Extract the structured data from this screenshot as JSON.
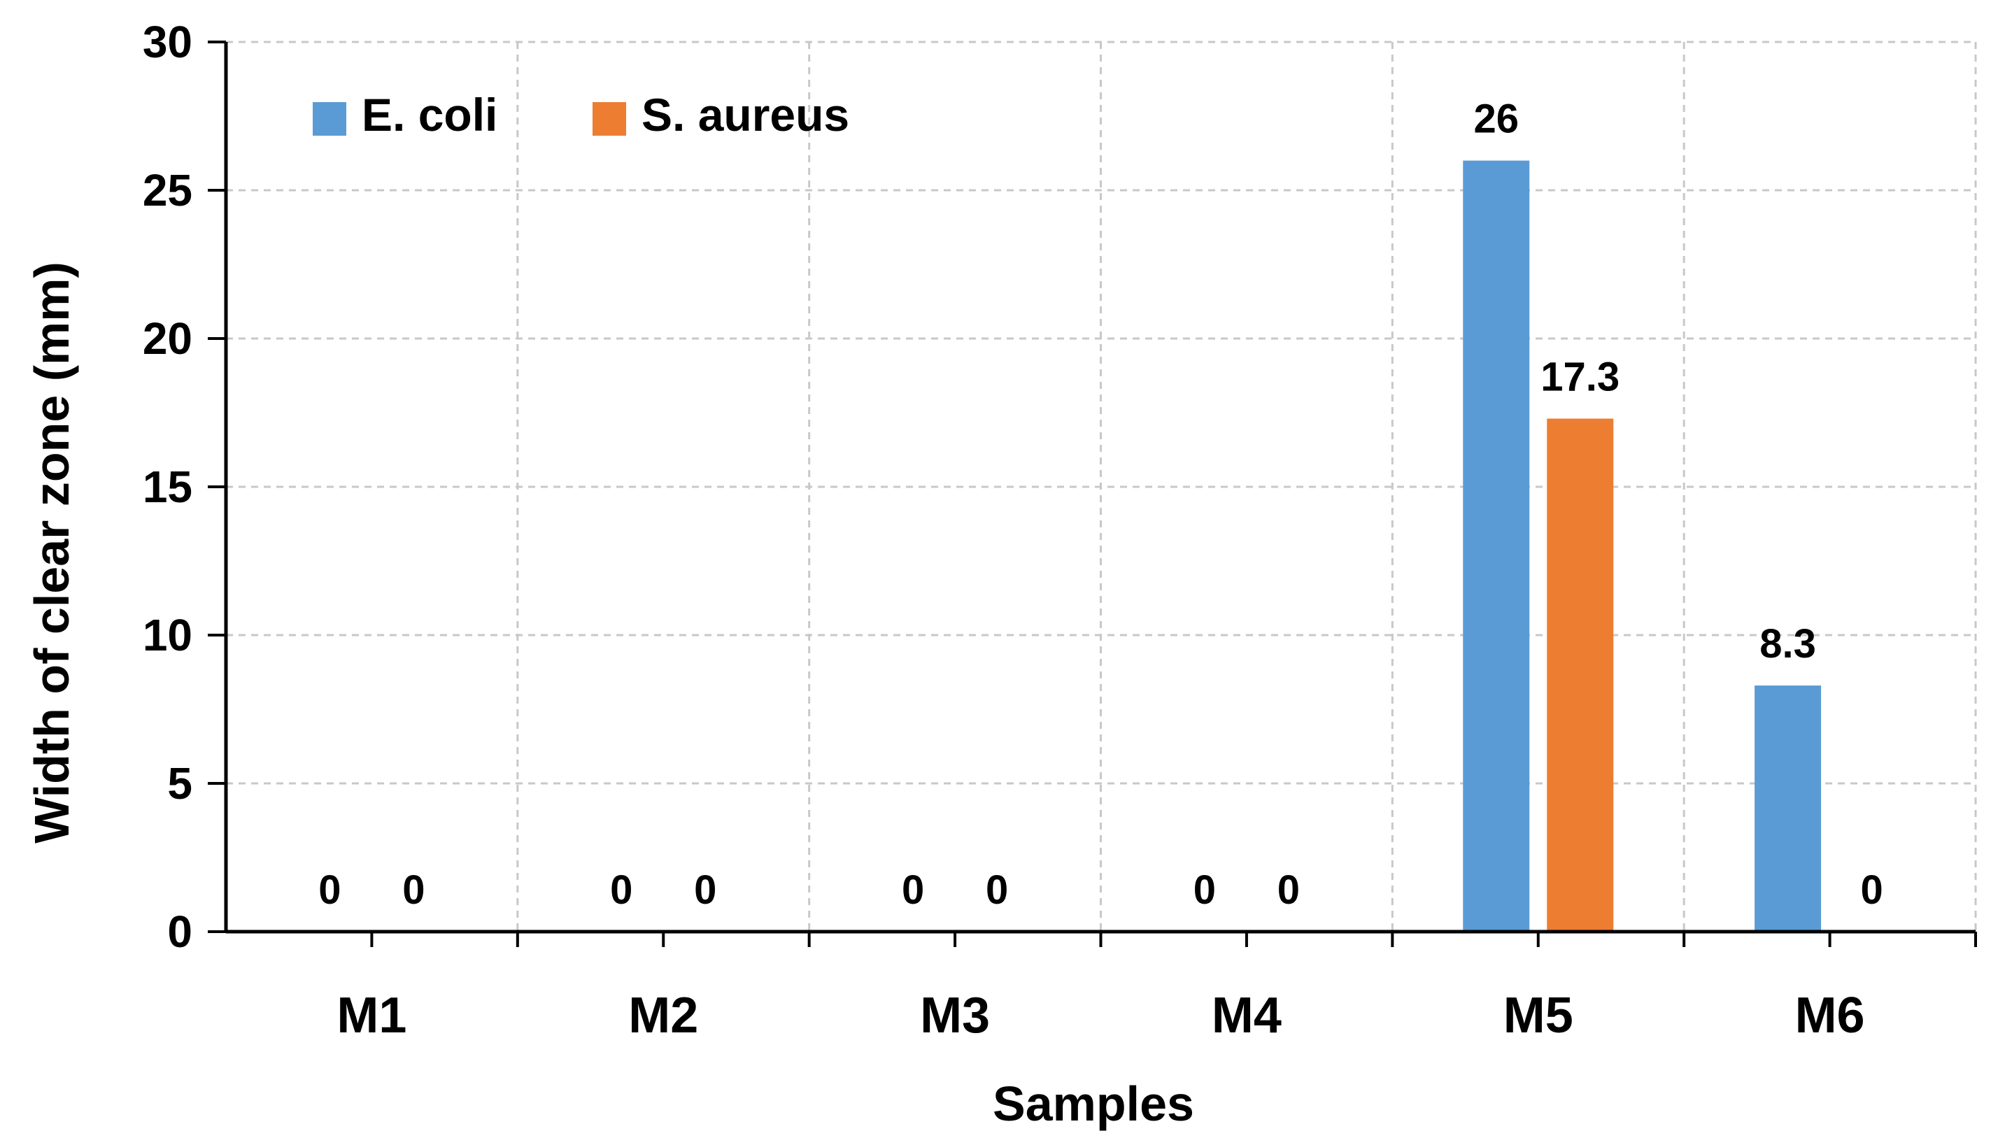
{
  "chart_data": {
    "type": "bar",
    "title": "",
    "xlabel": "Samples",
    "ylabel": "Width of clear zone (mm)",
    "ylim": [
      0,
      30
    ],
    "yticks": [
      0,
      5,
      10,
      15,
      20,
      25,
      30
    ],
    "categories": [
      "M1",
      "M2",
      "M3",
      "M4",
      "M5",
      "M6"
    ],
    "series": [
      {
        "name": "E. coli",
        "color": "#5B9BD5",
        "values": [
          0,
          0,
          0,
          0,
          26,
          8.3
        ]
      },
      {
        "name": "S. aureus",
        "color": "#ED7D31",
        "values": [
          0,
          0,
          0,
          0,
          17.3,
          0
        ]
      }
    ],
    "legend_position": "top-left",
    "grid": true
  }
}
